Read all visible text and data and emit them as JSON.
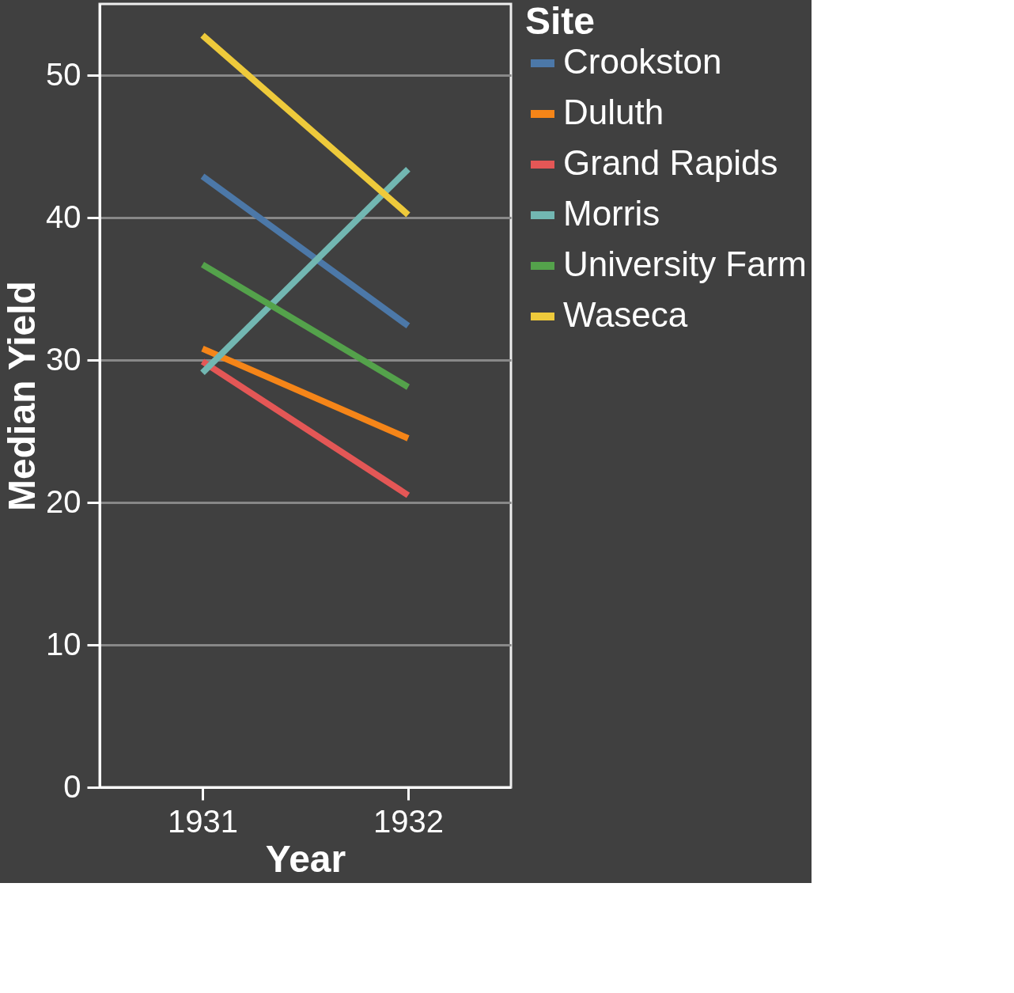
{
  "chart_data": {
    "type": "line",
    "xlabel": "Year",
    "ylabel": "Median Yield",
    "legend_title": "Site",
    "categories": [
      "1931",
      "1932"
    ],
    "series": [
      {
        "name": "Crookston",
        "color": "#4c78a8",
        "values": [
          42.9,
          32.4
        ]
      },
      {
        "name": "Duluth",
        "color": "#f58518",
        "values": [
          30.8,
          24.5
        ]
      },
      {
        "name": "Grand Rapids",
        "color": "#e45756",
        "values": [
          29.9,
          20.5
        ]
      },
      {
        "name": "Morris",
        "color": "#72b7b2",
        "values": [
          29.1,
          43.4
        ]
      },
      {
        "name": "University Farm",
        "color": "#54a24b",
        "values": [
          36.7,
          28.1
        ]
      },
      {
        "name": "Waseca",
        "color": "#eeca3b",
        "values": [
          52.8,
          40.2
        ]
      }
    ],
    "ylim": [
      0,
      55
    ],
    "yticks": [
      0,
      10,
      20,
      30,
      40,
      50
    ],
    "grid": "y",
    "legend": "top right",
    "marker": "none",
    "line_style": "solid"
  }
}
